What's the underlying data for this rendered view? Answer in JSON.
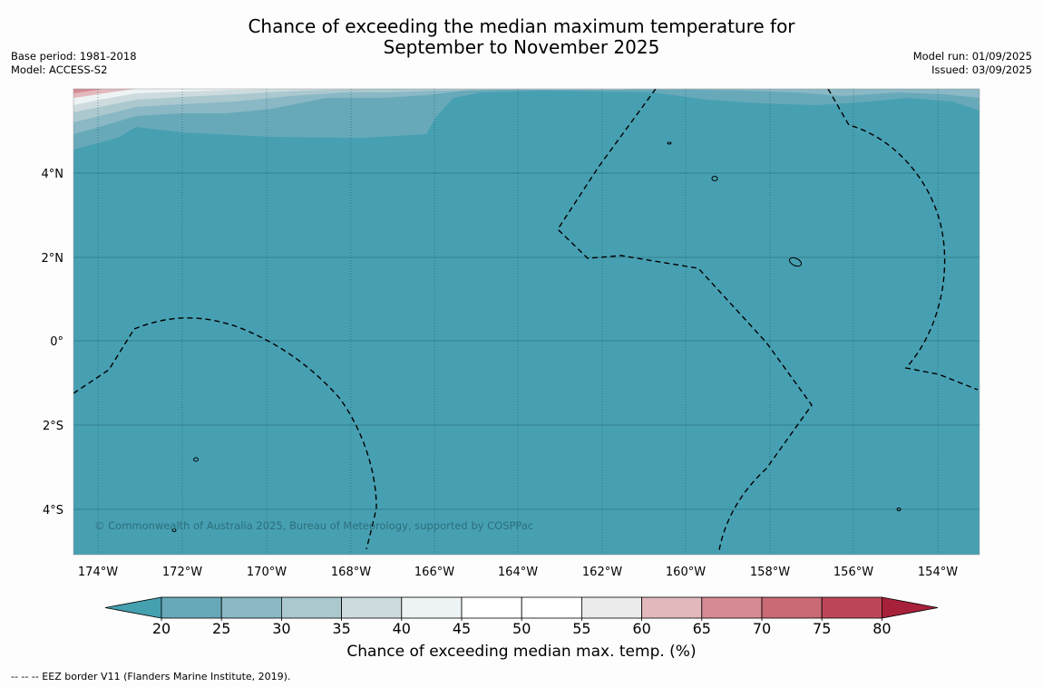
{
  "title": {
    "line1": "Chance of exceeding the median maximum temperature for",
    "line2": "September to November 2025"
  },
  "meta_left": {
    "base_period": "Base period: 1981-2018",
    "model": "Model: ACCESS-S2"
  },
  "meta_right": {
    "model_run": "Model run: 01/09/2025",
    "issued": "Issued: 03/09/2025"
  },
  "map": {
    "longitude_labels": [
      "174°W",
      "172°W",
      "170°W",
      "168°W",
      "166°W",
      "164°W",
      "162°W",
      "160°W",
      "158°W",
      "156°W",
      "154°W"
    ],
    "latitude_labels": [
      "4°N",
      "2°N",
      "0°",
      "2°S",
      "4°S"
    ],
    "copyright": "© Commonwealth of Australia 2025, Bureau of Meteorology, supported by COSPPac",
    "dominant_color": "#47a0b2"
  },
  "colorbar": {
    "ticks": [
      "20",
      "25",
      "30",
      "35",
      "40",
      "45",
      "50",
      "55",
      "60",
      "65",
      "70",
      "75",
      "80"
    ],
    "colors": [
      "#68a9b9",
      "#8ab8c5",
      "#abc8cf",
      "#cddbde",
      "#edf3f4",
      "#ffffff",
      "#ffffff",
      "#ebebeb",
      "#e2b8bd",
      "#d68b94",
      "#c96a75",
      "#bd4759"
    ],
    "under_color": "#45a0b0",
    "over_color": "#a8213b",
    "label": "Chance of exceeding median max. temp. (%)"
  },
  "footer": "--  --  -- EEZ border V11 (Flanders Marine Institute, 2019)."
}
